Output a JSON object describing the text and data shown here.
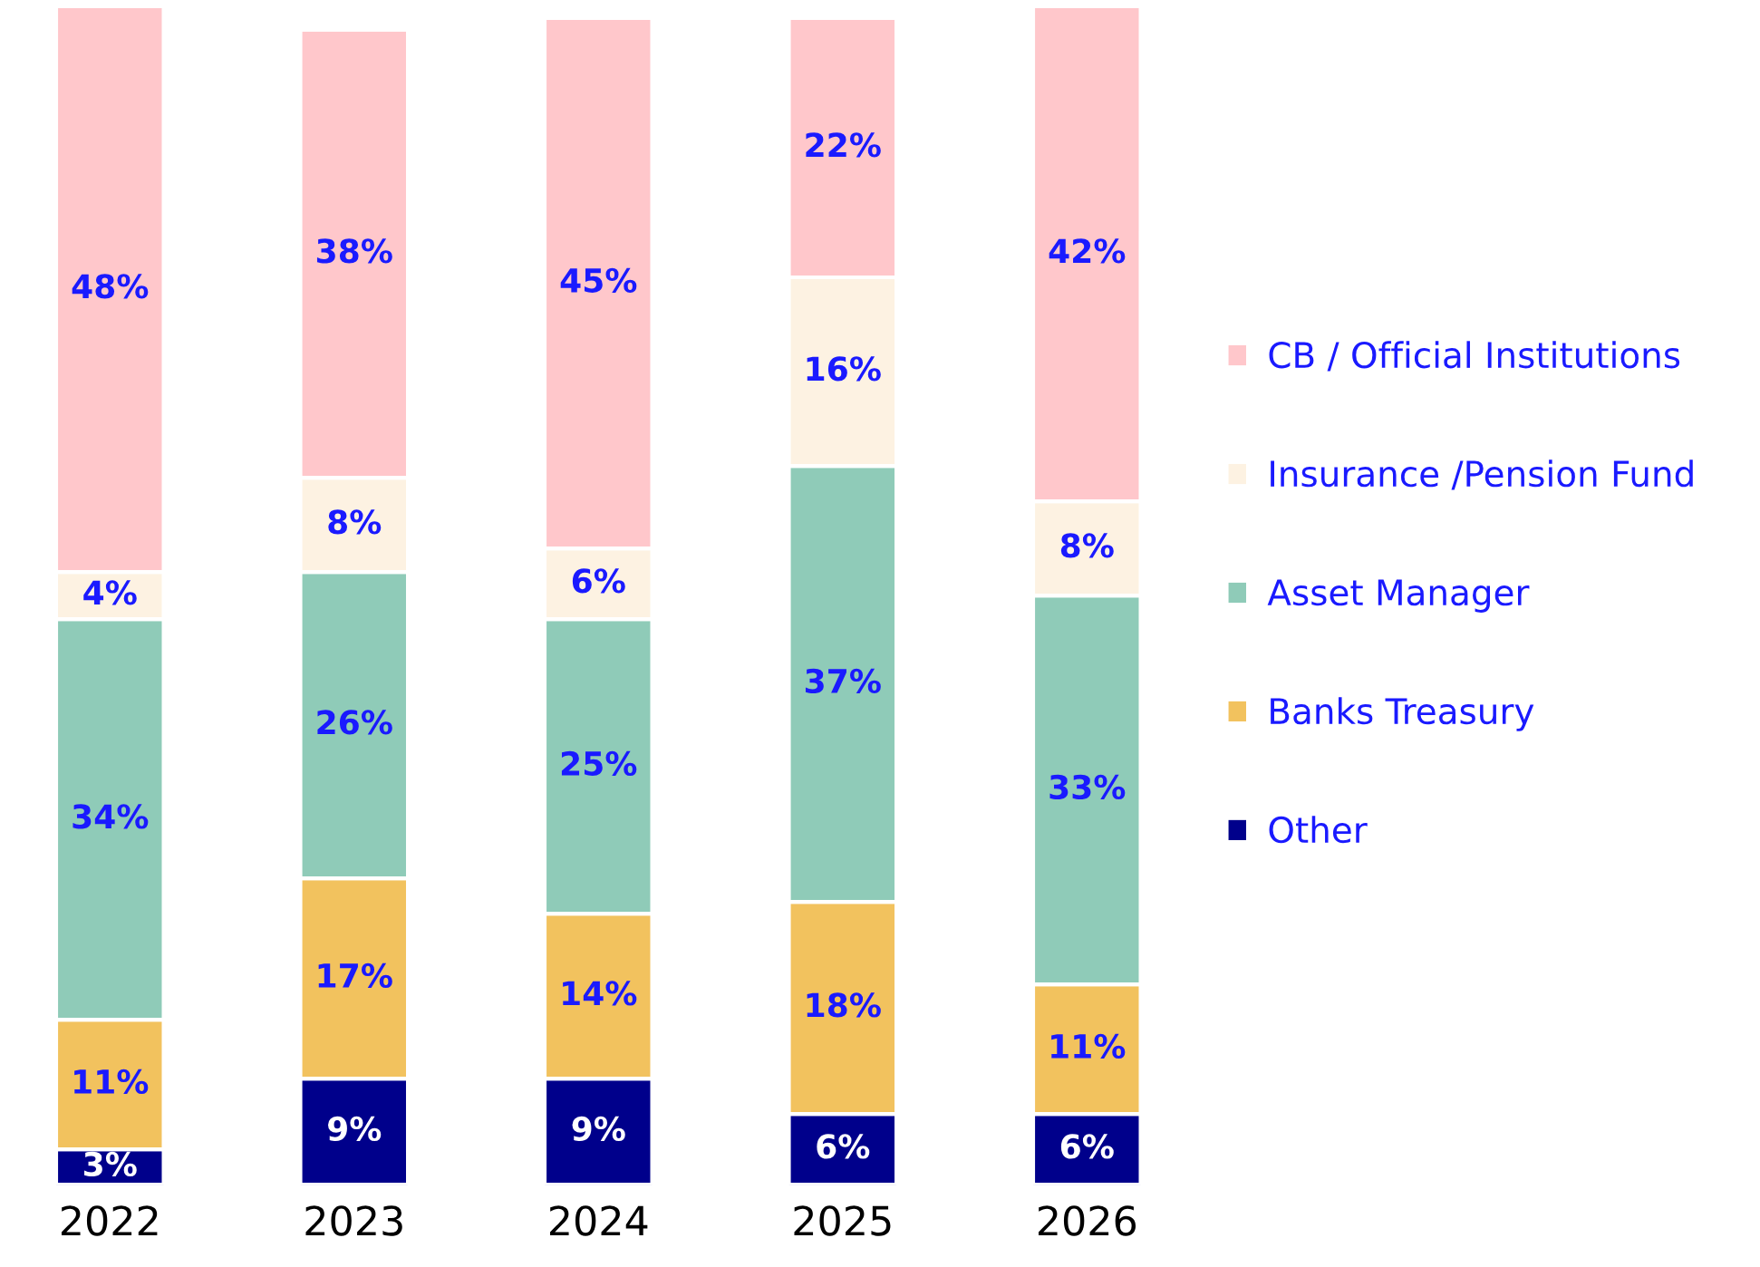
{
  "chart_data": {
    "type": "bar",
    "stacked": true,
    "categories": [
      "2022",
      "2023",
      "2024",
      "2025",
      "2026"
    ],
    "series": [
      {
        "name": "Other",
        "color": "#00008b",
        "values": [
          3,
          9,
          9,
          6,
          6
        ],
        "value_labels": [
          "3%",
          "9%",
          "9%",
          "6%",
          "6%"
        ]
      },
      {
        "name": "Banks Treasury",
        "color": "#f2c25e",
        "values": [
          11,
          17,
          14,
          18,
          11
        ],
        "value_labels": [
          "11%",
          "17%",
          "14%",
          "18%",
          "11%"
        ]
      },
      {
        "name": "Asset Manager",
        "color": "#8fcbb8",
        "values": [
          34,
          26,
          25,
          37,
          33
        ],
        "value_labels": [
          "34%",
          "26%",
          "25%",
          "37%",
          "33%"
        ]
      },
      {
        "name": "Insurance /Pension Fund",
        "color": "#fdf2e2",
        "values": [
          4,
          8,
          6,
          16,
          8
        ],
        "value_labels": [
          "4%",
          "8%",
          "6%",
          "16%",
          "8%"
        ]
      },
      {
        "name": "CB / Official Institutions",
        "color": "#ffc7cb",
        "values": [
          48,
          38,
          45,
          22,
          42
        ],
        "value_labels": [
          "48%",
          "38%",
          "45%",
          "22%",
          "42%"
        ]
      }
    ],
    "legend": "right",
    "grid": false,
    "tick_labels": "x"
  }
}
